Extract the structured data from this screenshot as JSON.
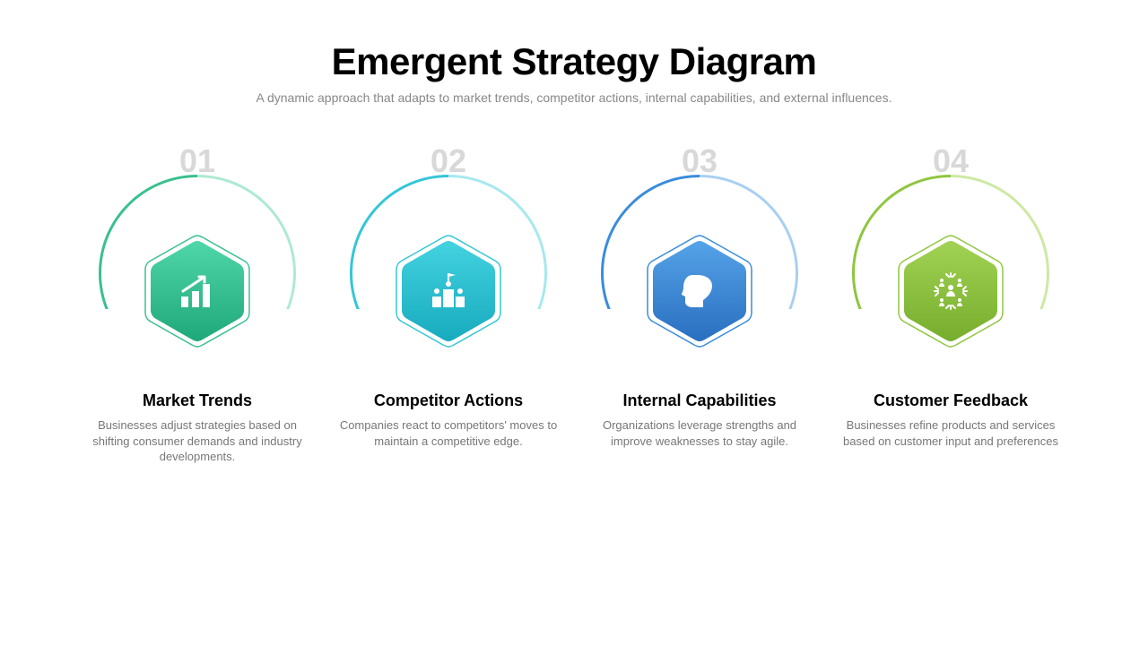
{
  "title": "Emergent Strategy Diagram",
  "subtitle": "A dynamic approach that adapts to market trends, competitor actions, internal capabilities, and external influences.",
  "number_color": "#d8d8d8",
  "title_color": "#000000",
  "subtitle_color": "#888888",
  "item_title_color": "#000000",
  "item_desc_color": "#777777",
  "items": [
    {
      "number": "01",
      "title": "Market Trends",
      "desc": "Businesses adjust strategies based on shifting consumer demands and industry developments.",
      "arc_gradient_from": "#39c08f",
      "arc_gradient_to": "#aee9d3",
      "hex_from": "#4fd6a9",
      "hex_to": "#1fa879",
      "border_color": "#39c08f",
      "icon": "chart"
    },
    {
      "number": "02",
      "title": "Competitor Actions",
      "desc": "Companies react to competitors' moves to maintain a competitive edge.",
      "arc_gradient_from": "#34c6d7",
      "arc_gradient_to": "#a7e8ef",
      "hex_from": "#43d2e0",
      "hex_to": "#17abbe",
      "border_color": "#34c6d7",
      "icon": "podium"
    },
    {
      "number": "03",
      "title": "Internal Capabilities",
      "desc": "Organizations leverage strengths and improve weaknesses to stay agile.",
      "arc_gradient_from": "#3a8cdc",
      "arc_gradient_to": "#a9cff2",
      "hex_from": "#55a3e8",
      "hex_to": "#2a6fc0",
      "border_color": "#3a8cdc",
      "icon": "head"
    },
    {
      "number": "04",
      "title": "Customer Feedback",
      "desc": "Businesses refine products and services based on customer input and preferences",
      "arc_gradient_from": "#8fc63f",
      "arc_gradient_to": "#cde9a3",
      "hex_from": "#a1d254",
      "hex_to": "#77ad2c",
      "border_color": "#8fc63f",
      "icon": "people"
    }
  ]
}
